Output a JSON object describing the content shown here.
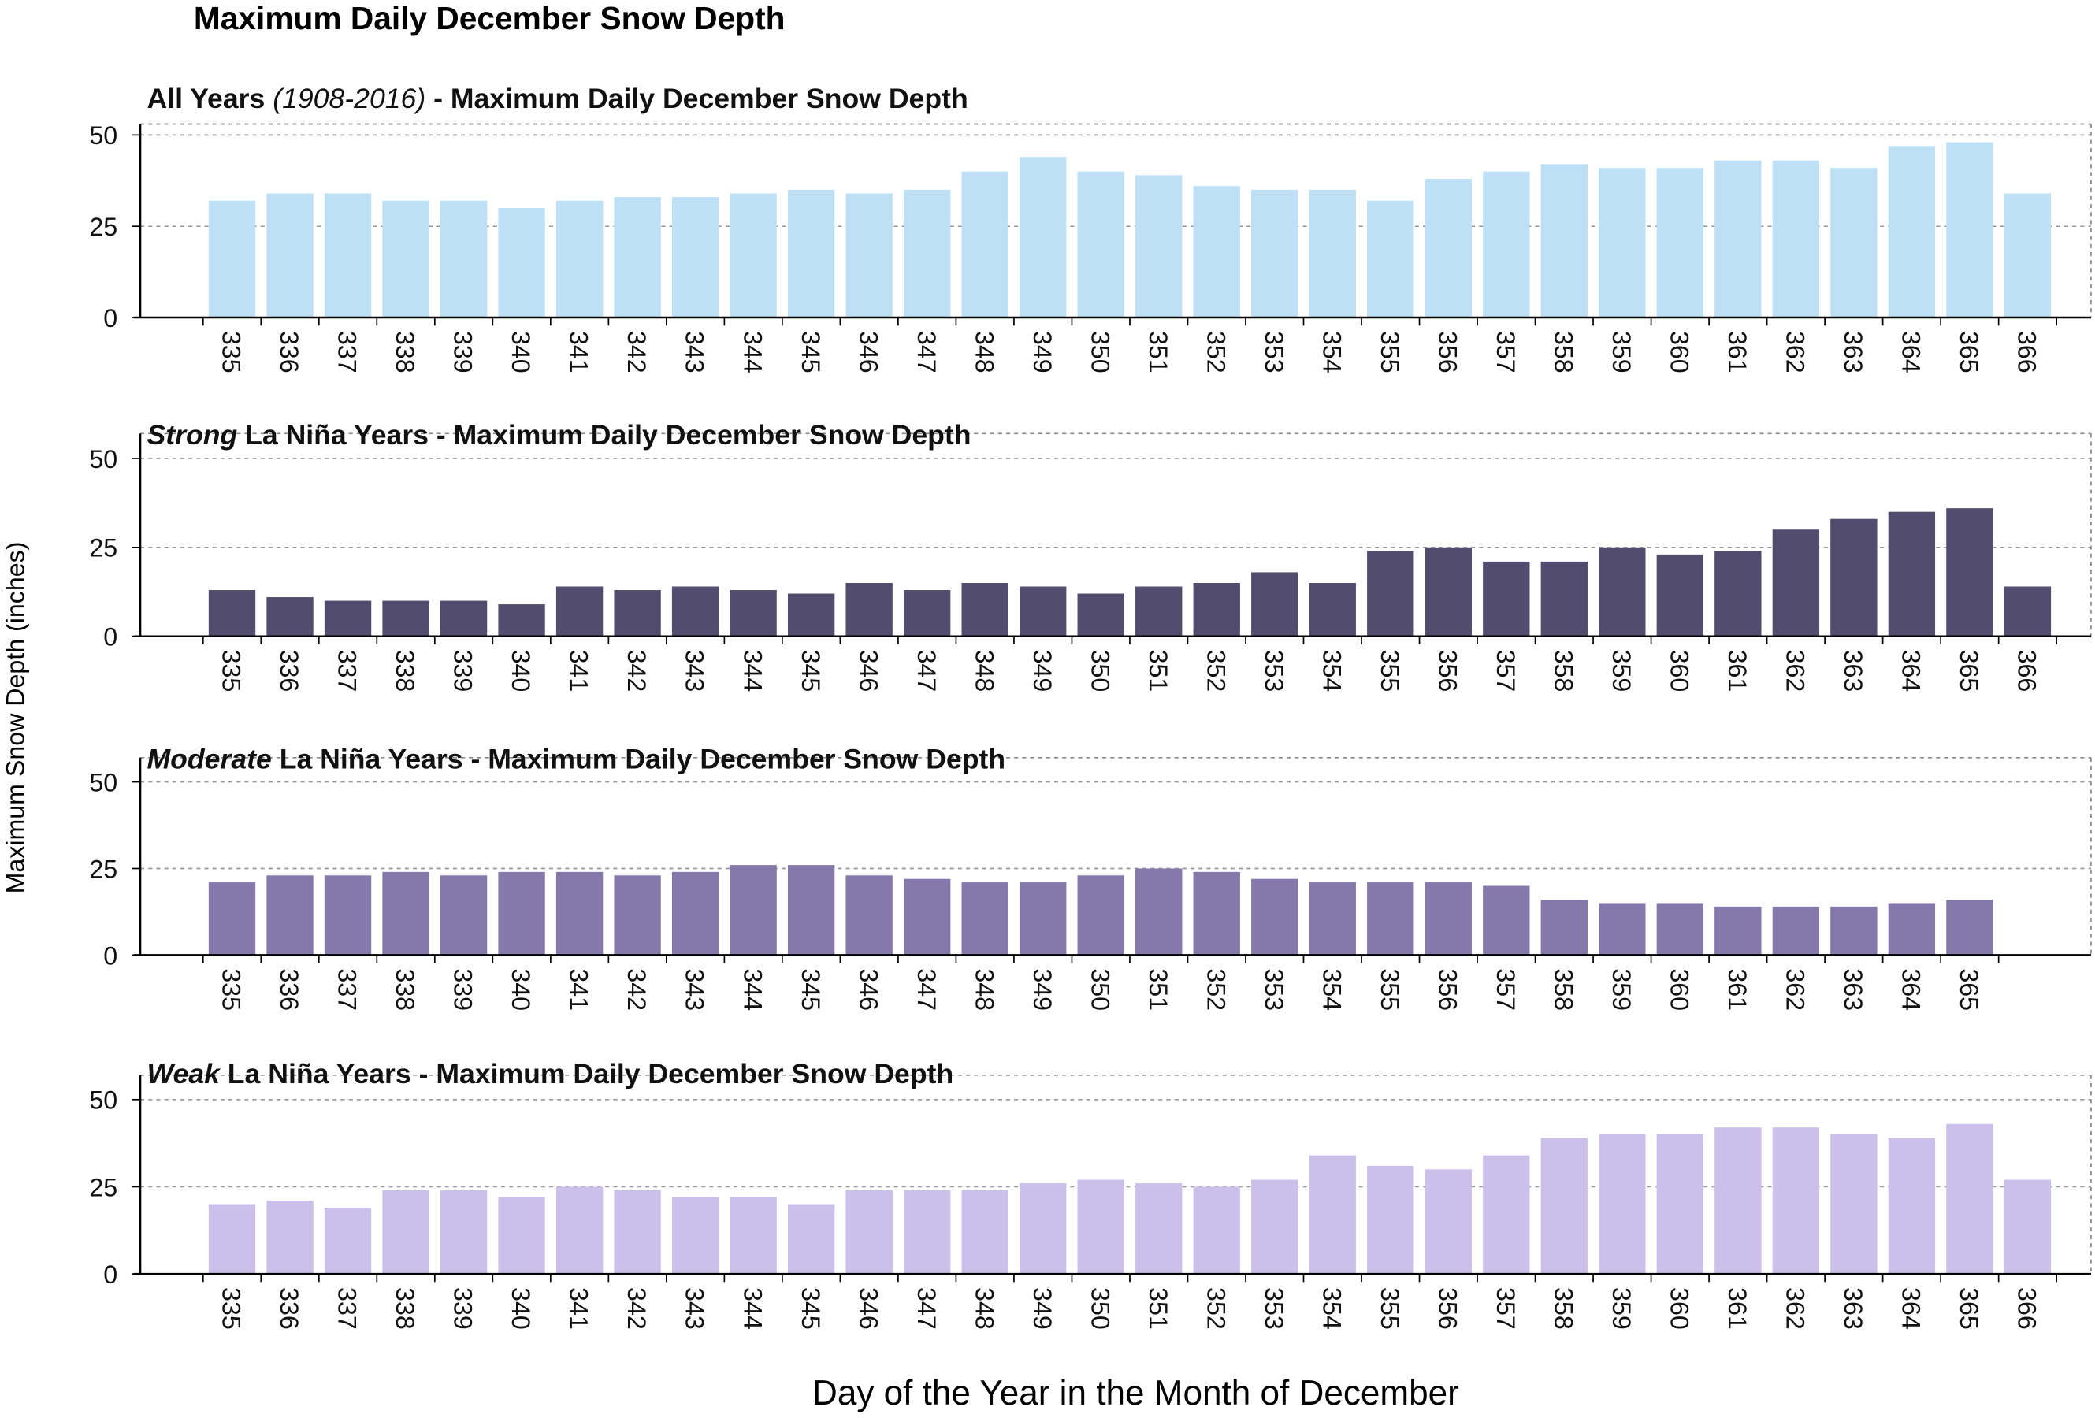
{
  "title": "Maximum Daily December Snow Depth",
  "ylabel": "Maximum Snow Depth (inches)",
  "xlabel": "Day of the Year in the Month of December",
  "chart_data": [
    {
      "type": "bar",
      "title_parts": [
        {
          "text": "All Years ",
          "italic": false
        },
        {
          "text": "(1908-2016)",
          "italic": true
        },
        {
          "text": " - Maximum Daily December Snow Depth",
          "italic": false
        }
      ],
      "categories": [
        "335",
        "336",
        "337",
        "338",
        "339",
        "340",
        "341",
        "342",
        "343",
        "344",
        "345",
        "346",
        "347",
        "348",
        "349",
        "350",
        "351",
        "352",
        "353",
        "354",
        "355",
        "356",
        "357",
        "358",
        "359",
        "360",
        "361",
        "362",
        "363",
        "364",
        "365",
        "366"
      ],
      "values": [
        32,
        34,
        34,
        32,
        32,
        30,
        32,
        33,
        33,
        34,
        35,
        34,
        35,
        40,
        44,
        40,
        39,
        36,
        35,
        35,
        32,
        38,
        40,
        42,
        41,
        41,
        43,
        43,
        41,
        47,
        48,
        34
      ],
      "color": "#bde0f7",
      "ylim": [
        0,
        53
      ],
      "yticks": [
        0,
        25,
        50
      ],
      "grid": true
    },
    {
      "type": "bar",
      "title_parts": [
        {
          "text": "Strong",
          "italic": true
        },
        {
          "text": " La Niña Years - Maximum Daily December Snow Depth",
          "italic": false
        }
      ],
      "categories": [
        "335",
        "336",
        "337",
        "338",
        "339",
        "340",
        "341",
        "342",
        "343",
        "344",
        "345",
        "346",
        "347",
        "348",
        "349",
        "350",
        "351",
        "352",
        "353",
        "354",
        "355",
        "356",
        "357",
        "358",
        "359",
        "360",
        "361",
        "362",
        "363",
        "364",
        "365",
        "366"
      ],
      "values": [
        13,
        11,
        10,
        10,
        10,
        9,
        14,
        13,
        14,
        13,
        12,
        15,
        13,
        15,
        14,
        12,
        14,
        15,
        18,
        15,
        24,
        25,
        21,
        21,
        25,
        23,
        24,
        30,
        33,
        35,
        36,
        14
      ],
      "color": "#524d6e",
      "ylim": [
        0,
        57
      ],
      "yticks": [
        0,
        25,
        50
      ],
      "grid": true
    },
    {
      "type": "bar",
      "title_parts": [
        {
          "text": "Moderate",
          "italic": true
        },
        {
          "text": " La Niña Years - Maximum Daily December Snow Depth",
          "italic": false
        }
      ],
      "categories": [
        "335",
        "336",
        "337",
        "338",
        "339",
        "340",
        "341",
        "342",
        "343",
        "344",
        "345",
        "346",
        "347",
        "348",
        "349",
        "350",
        "351",
        "352",
        "353",
        "354",
        "355",
        "356",
        "357",
        "358",
        "359",
        "360",
        "361",
        "362",
        "363",
        "364",
        "365"
      ],
      "values": [
        21,
        23,
        23,
        24,
        23,
        24,
        24,
        23,
        24,
        26,
        26,
        23,
        22,
        21,
        21,
        23,
        25,
        24,
        22,
        21,
        21,
        21,
        20,
        16,
        15,
        15,
        14,
        14,
        14,
        15,
        16
      ],
      "color": "#8479aa",
      "ylim": [
        0,
        57
      ],
      "yticks": [
        0,
        25,
        50
      ],
      "grid": true
    },
    {
      "type": "bar",
      "title_parts": [
        {
          "text": "Weak",
          "italic": true
        },
        {
          "text": " La Niña Years - Maximum Daily December Snow Depth",
          "italic": false
        }
      ],
      "categories": [
        "335",
        "336",
        "337",
        "338",
        "339",
        "340",
        "341",
        "342",
        "343",
        "344",
        "345",
        "346",
        "347",
        "348",
        "349",
        "350",
        "351",
        "352",
        "353",
        "354",
        "355",
        "356",
        "357",
        "358",
        "359",
        "360",
        "361",
        "362",
        "363",
        "364",
        "365",
        "366"
      ],
      "values": [
        20,
        21,
        19,
        24,
        24,
        22,
        25,
        24,
        22,
        22,
        20,
        24,
        24,
        24,
        26,
        27,
        26,
        25,
        27,
        34,
        31,
        30,
        34,
        39,
        40,
        40,
        42,
        42,
        40,
        39,
        43,
        27
      ],
      "color": "#cbc0ea",
      "ylim": [
        0,
        57
      ],
      "yticks": [
        0,
        25,
        50
      ],
      "grid": true
    }
  ]
}
